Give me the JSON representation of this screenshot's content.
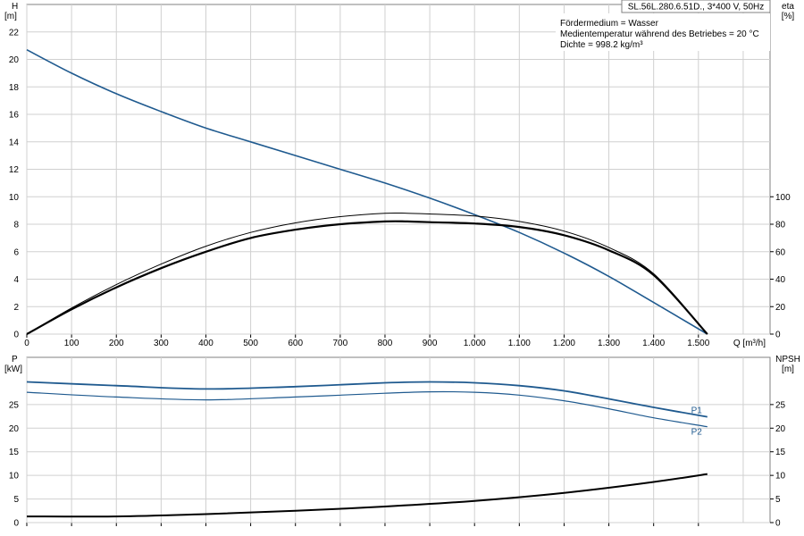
{
  "chart_data": [
    {
      "type": "line",
      "panel": "performance",
      "title": "SL.56L.280.6.51D., 3*400 V, 50Hz",
      "annotations": [
        "Fördermedium = Wasser",
        "Medientemperatur während des Betriebes = 20 °C",
        "Dichte = 998.2 kg/m³"
      ],
      "xlabel": "Q [m³/h]",
      "x_ticks": [
        "0",
        "100",
        "200",
        "300",
        "400",
        "500",
        "600",
        "700",
        "800",
        "900",
        "1.000",
        "1.100",
        "1.200",
        "1.300",
        "1.400",
        "1.500"
      ],
      "xlim": [
        0,
        1660
      ],
      "ylabel_left": {
        "name": "H",
        "unit": "[m]"
      },
      "y_ticks_left": [
        "0",
        "2",
        "4",
        "6",
        "8",
        "10",
        "12",
        "14",
        "16",
        "18",
        "20",
        "22"
      ],
      "ylim_left": [
        0,
        24
      ],
      "ylabel_right": {
        "name": "eta",
        "unit": "[%]"
      },
      "y_ticks_right": [
        "0",
        "20",
        "40",
        "60",
        "80",
        "100"
      ],
      "ylim_right": [
        0,
        240
      ],
      "grid": true,
      "series": [
        {
          "axis": "left",
          "color": "#1f5a8f",
          "x": [
            0,
            100,
            200,
            300,
            400,
            500,
            600,
            700,
            800,
            900,
            1000,
            1100,
            1200,
            1300,
            1400,
            1520
          ],
          "y": [
            20.7,
            19.0,
            17.5,
            16.2,
            15.0,
            14.0,
            13.0,
            12.0,
            11.0,
            9.9,
            8.7,
            7.4,
            5.9,
            4.2,
            2.3,
            0
          ]
        },
        {
          "axis": "right",
          "color": "#000000",
          "x": [
            0,
            100,
            200,
            300,
            400,
            500,
            600,
            700,
            800,
            850,
            900,
            1000,
            1100,
            1200,
            1300,
            1400,
            1520
          ],
          "y": [
            0,
            18,
            34,
            48,
            60,
            70,
            76,
            80,
            82,
            82,
            81.5,
            80.5,
            78,
            72,
            61,
            43,
            0
          ]
        },
        {
          "axis": "right",
          "color": "#000000",
          "x": [
            0,
            100,
            200,
            300,
            400,
            500,
            600,
            700,
            800,
            850,
            900,
            1000,
            1100,
            1200,
            1300,
            1400,
            1520
          ],
          "y": [
            0,
            19,
            36,
            51,
            64,
            74,
            81,
            85.5,
            88,
            88,
            87.5,
            86,
            82,
            75,
            63,
            44,
            0
          ]
        }
      ]
    },
    {
      "type": "line",
      "panel": "power-npsh",
      "x_ticks": [
        "0",
        "100",
        "200",
        "300",
        "400",
        "500",
        "600",
        "700",
        "800",
        "900",
        "1.000",
        "1.100",
        "1.200",
        "1.300",
        "1.400",
        "1.500"
      ],
      "xlim": [
        0,
        1660
      ],
      "ylabel_left": {
        "name": "P",
        "unit": "[kW]"
      },
      "y_ticks_left": [
        "0",
        "5",
        "10",
        "15",
        "20",
        "25"
      ],
      "ylim_left": [
        0,
        35
      ],
      "ylabel_right": {
        "name": "NPSH",
        "unit": "[m]"
      },
      "y_ticks_right": [
        "0",
        "5",
        "10",
        "15",
        "20",
        "25"
      ],
      "ylim_right": [
        0,
        35
      ],
      "grid": true,
      "series": [
        {
          "name": "P1",
          "axis": "left",
          "color": "#1f5a8f",
          "x": [
            0,
            200,
            400,
            600,
            800,
            900,
            1000,
            1100,
            1200,
            1300,
            1400,
            1520
          ],
          "y": [
            29.8,
            29.0,
            28.3,
            28.8,
            29.6,
            29.8,
            29.6,
            29.0,
            27.9,
            26.2,
            24.4,
            22.4
          ]
        },
        {
          "name": "P2",
          "axis": "left",
          "color": "#1f5a8f",
          "x": [
            0,
            200,
            400,
            600,
            800,
            900,
            1000,
            1100,
            1200,
            1300,
            1400,
            1520
          ],
          "y": [
            27.6,
            26.6,
            26.0,
            26.6,
            27.4,
            27.7,
            27.6,
            27.0,
            25.8,
            24.1,
            22.2,
            20.3
          ]
        },
        {
          "axis": "right",
          "color": "#000000",
          "x": [
            0,
            200,
            400,
            600,
            800,
            1000,
            1200,
            1400,
            1520
          ],
          "y": [
            1.3,
            1.3,
            1.8,
            2.5,
            3.4,
            4.6,
            6.3,
            8.6,
            10.3
          ]
        }
      ]
    }
  ]
}
